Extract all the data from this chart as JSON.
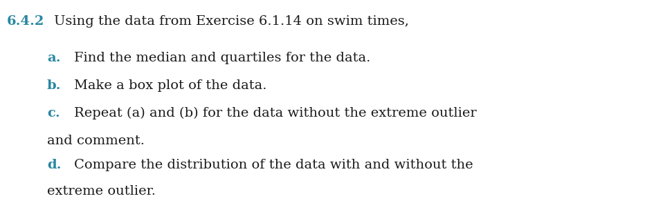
{
  "background_color": "#ffffff",
  "teal_color": "#2887A1",
  "black_color": "#1a1a1a",
  "title_label": "6.4.2",
  "title_text": "Using the data from Exercise 6.1.14 on swim times,",
  "items": [
    {
      "label": "a.",
      "text": "Find the median and quartiles for the data.",
      "continuation": false
    },
    {
      "label": "b.",
      "text": "Make a box plot of the data.",
      "continuation": false
    },
    {
      "label": "c.",
      "text": "Repeat (a) and (b) for the data without the extreme outlier",
      "continuation": false
    },
    {
      "label": "",
      "text": "and comment.",
      "continuation": true
    },
    {
      "label": "d.",
      "text": "Compare the distribution of the data with and without the",
      "continuation": false
    },
    {
      "label": "",
      "text": "extreme outlier.",
      "continuation": true
    }
  ],
  "title_fontsize": 14.0,
  "body_fontsize": 14.0,
  "label_fontsize": 14.0
}
